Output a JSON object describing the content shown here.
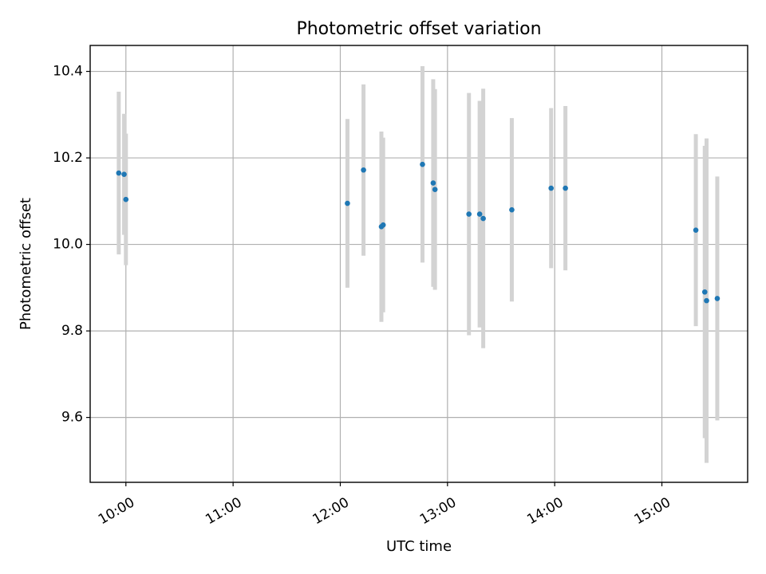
{
  "chart_data": {
    "type": "scatter",
    "title": "Photometric offset variation",
    "xlabel": "UTC time",
    "ylabel": "Photometric offset",
    "xlim": [
      "09:40",
      "15:48"
    ],
    "ylim": [
      9.45,
      10.46
    ],
    "xticks": [
      "10:00",
      "11:00",
      "12:00",
      "13:00",
      "14:00",
      "15:00"
    ],
    "yticks": [
      "9.6",
      "9.8",
      "10.0",
      "10.2",
      "10.4"
    ],
    "grid": true,
    "colors": {
      "point": "#1f77b4",
      "errorbar": "#d3d3d3"
    },
    "points": [
      {
        "x": "09:56",
        "y": 10.165,
        "err": 0.188
      },
      {
        "x": "09:59",
        "y": 10.162,
        "err": 0.14
      },
      {
        "x": "10:00",
        "y": 10.104,
        "err": 0.152
      },
      {
        "x": "12:04",
        "y": 10.095,
        "err": 0.195
      },
      {
        "x": "12:13",
        "y": 10.172,
        "err": 0.198
      },
      {
        "x": "12:23",
        "y": 10.041,
        "err": 0.22
      },
      {
        "x": "12:24",
        "y": 10.045,
        "err": 0.202
      },
      {
        "x": "12:46",
        "y": 10.185,
        "err": 0.227
      },
      {
        "x": "12:52",
        "y": 10.142,
        "err": 0.24
      },
      {
        "x": "12:53",
        "y": 10.127,
        "err": 0.232
      },
      {
        "x": "13:12",
        "y": 10.07,
        "err": 0.28
      },
      {
        "x": "13:18",
        "y": 10.07,
        "err": 0.262
      },
      {
        "x": "13:20",
        "y": 10.06,
        "err": 0.3
      },
      {
        "x": "13:36",
        "y": 10.08,
        "err": 0.212
      },
      {
        "x": "13:58",
        "y": 10.13,
        "err": 0.185
      },
      {
        "x": "14:06",
        "y": 10.13,
        "err": 0.19
      },
      {
        "x": "15:19",
        "y": 10.033,
        "err": 0.222
      },
      {
        "x": "15:24",
        "y": 9.89,
        "err": 0.338
      },
      {
        "x": "15:25",
        "y": 9.87,
        "err": 0.375
      },
      {
        "x": "15:31",
        "y": 9.875,
        "err": 0.282
      }
    ]
  }
}
